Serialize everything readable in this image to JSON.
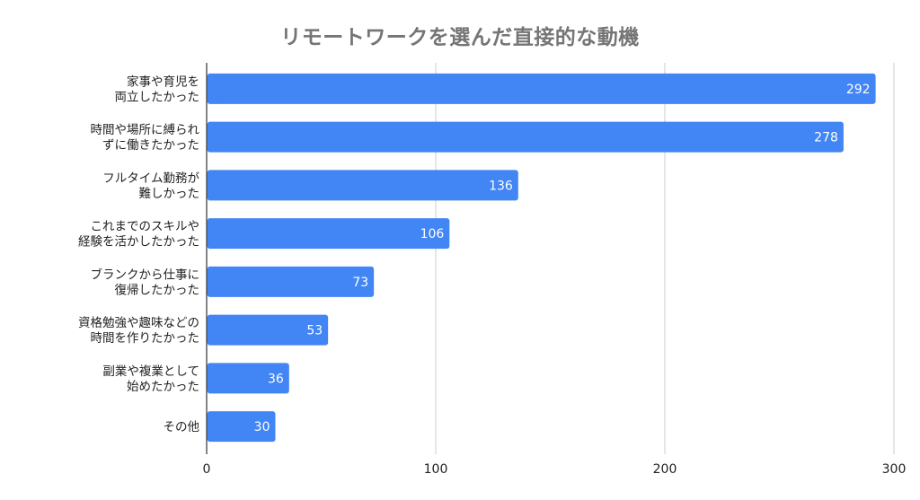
{
  "chart_data": {
    "type": "bar",
    "orientation": "horizontal",
    "title": "リモートワークを選んだ直接的な動機",
    "categories": [
      "家事や育児を\n両立したかった",
      "時間や場所に縛られ\nずに働きたかった",
      "フルタイム勤務が\n難しかった",
      "これまでのスキルや\n経験を活かしたかった",
      "ブランクから仕事に\n復帰したかった",
      "資格勉強や趣味などの\n時間を作りたかった",
      "副業や複業として\n始めたかった",
      "その他"
    ],
    "values": [
      292,
      278,
      136,
      106,
      73,
      53,
      36,
      30
    ],
    "xlim": [
      0,
      300
    ],
    "xticks": [
      0,
      100,
      200,
      300
    ],
    "grid": true,
    "data_labels": true,
    "bar_color": "#4285f4",
    "grid_color": "#cccccc",
    "axis_color": "#333333"
  }
}
